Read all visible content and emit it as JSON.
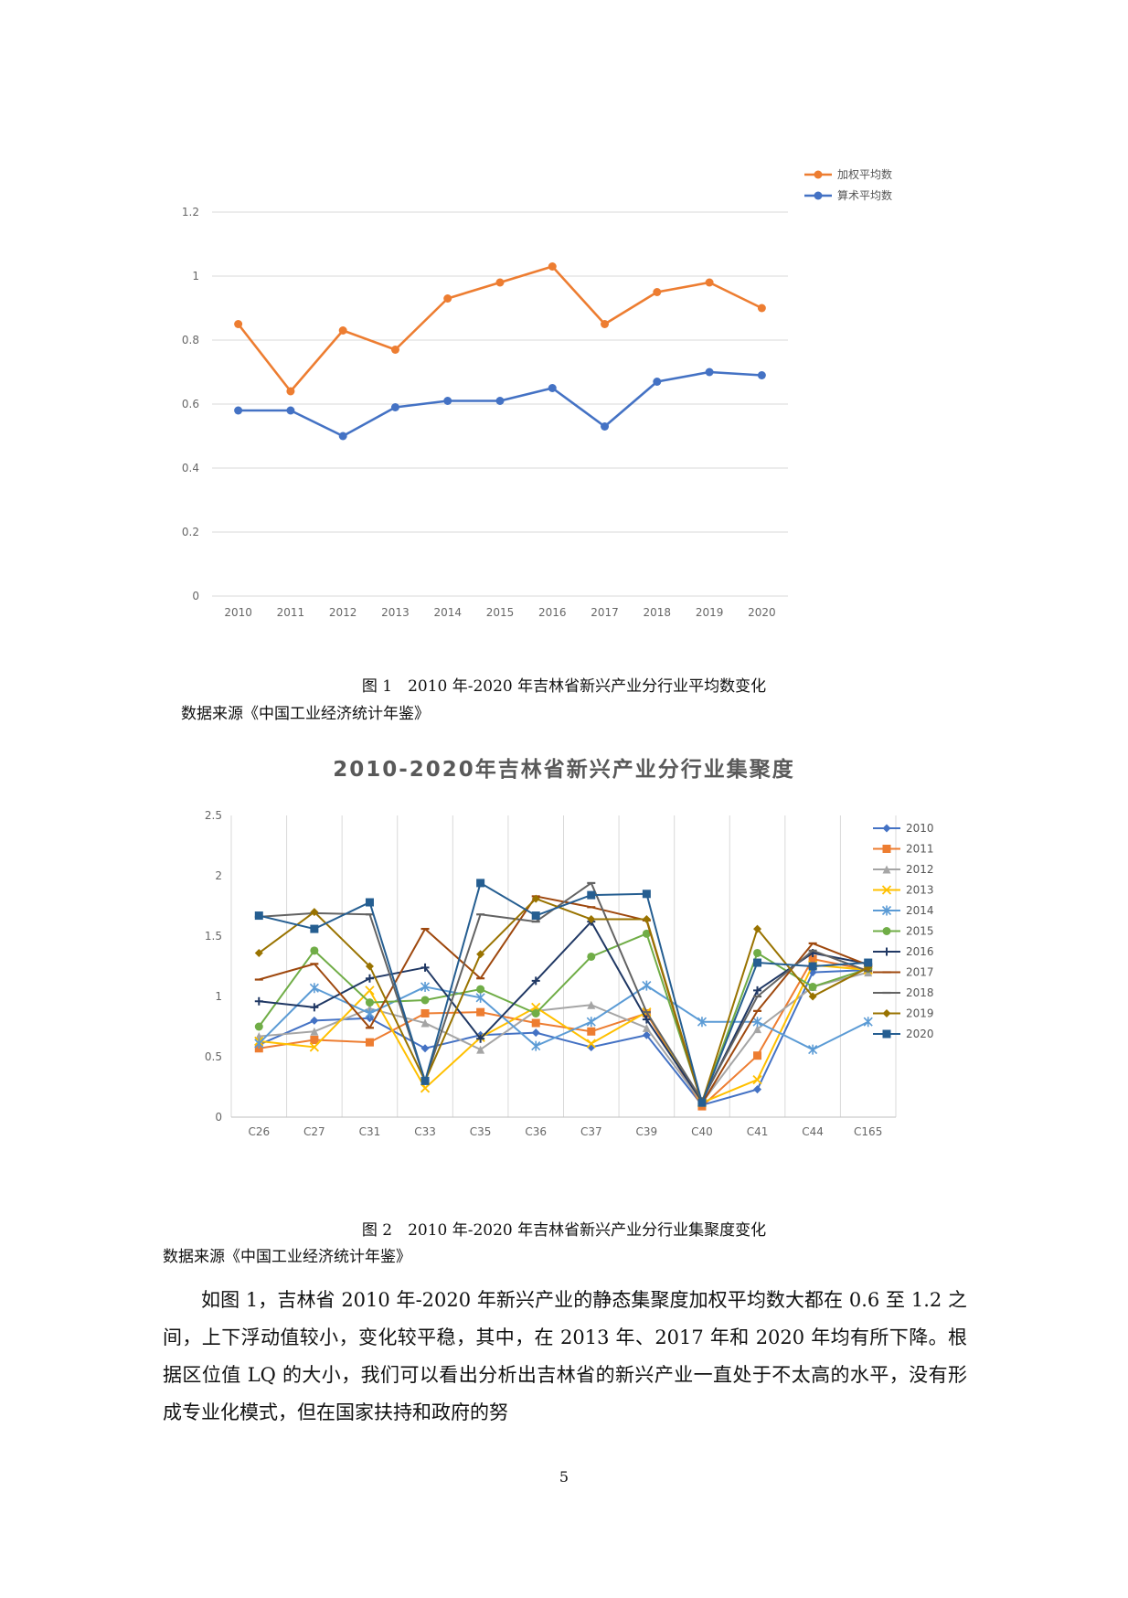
{
  "chart_data": [
    {
      "type": "line",
      "title": "",
      "categories": [
        "2010",
        "2011",
        "2012",
        "2013",
        "2014",
        "2015",
        "2016",
        "2017",
        "2018",
        "2019",
        "2020"
      ],
      "y_ticks": [
        "0",
        "0.2",
        "0.4",
        "0.6",
        "0.8",
        "1",
        "1.2"
      ],
      "ylim": [
        0,
        1.2
      ],
      "legend_position": "top-right",
      "series": [
        {
          "name": "加权平均数",
          "color": "#ED7D31",
          "marker": "circle",
          "values": [
            0.85,
            0.64,
            0.83,
            0.77,
            0.93,
            0.98,
            1.03,
            0.85,
            0.95,
            0.98,
            0.9
          ]
        },
        {
          "name": "算术平均数",
          "color": "#4472C4",
          "marker": "circle",
          "values": [
            0.58,
            0.58,
            0.5,
            0.59,
            0.61,
            0.61,
            0.65,
            0.53,
            0.67,
            0.7,
            0.69
          ]
        }
      ]
    },
    {
      "type": "line",
      "title": "2010-2020年吉林省新兴产业分行业集聚度",
      "categories": [
        "C26",
        "C27",
        "C31",
        "C33",
        "C35",
        "C36",
        "C37",
        "C39",
        "C40",
        "C41",
        "C44",
        "C165"
      ],
      "y_ticks": [
        "0",
        "0.5",
        "1",
        "1.5",
        "2",
        "2.5"
      ],
      "ylim": [
        0,
        2.5
      ],
      "legend_position": "right",
      "series": [
        {
          "name": "2010",
          "color": "#4472C4",
          "marker": "diamond",
          "values": [
            0.6,
            0.8,
            0.82,
            0.57,
            0.68,
            0.7,
            0.58,
            0.68,
            0.1,
            0.23,
            1.2,
            1.22
          ]
        },
        {
          "name": "2011",
          "color": "#ED7D31",
          "marker": "square",
          "values": [
            0.57,
            0.64,
            0.62,
            0.86,
            0.87,
            0.78,
            0.71,
            0.86,
            0.09,
            0.51,
            1.31,
            1.22
          ]
        },
        {
          "name": "2012",
          "color": "#A5A5A5",
          "marker": "triangle",
          "values": [
            0.67,
            0.71,
            0.9,
            0.78,
            0.56,
            0.88,
            0.93,
            0.74,
            0.12,
            0.73,
            1.08,
            1.2
          ]
        },
        {
          "name": "2013",
          "color": "#FFC000",
          "marker": "x",
          "values": [
            0.63,
            0.58,
            1.05,
            0.24,
            0.66,
            0.91,
            0.61,
            0.87,
            0.12,
            0.31,
            1.26,
            1.22
          ]
        },
        {
          "name": "2014",
          "color": "#5B9BD5",
          "marker": "star",
          "values": [
            0.61,
            1.07,
            0.86,
            1.08,
            0.99,
            0.59,
            0.79,
            1.09,
            0.79,
            0.79,
            0.56,
            0.79
          ]
        },
        {
          "name": "2015",
          "color": "#70AD47",
          "marker": "circle",
          "values": [
            0.75,
            1.38,
            0.95,
            0.97,
            1.06,
            0.86,
            1.33,
            1.52,
            0.12,
            1.36,
            1.08,
            1.23
          ]
        },
        {
          "name": "2016",
          "color": "#203864",
          "marker": "plus",
          "values": [
            0.96,
            0.91,
            1.15,
            1.24,
            0.65,
            1.13,
            1.62,
            0.81,
            0.13,
            1.05,
            1.36,
            1.27
          ]
        },
        {
          "name": "2017",
          "color": "#9E480E",
          "marker": "line",
          "values": [
            1.14,
            1.27,
            0.74,
            1.56,
            1.15,
            1.83,
            1.74,
            1.63,
            0.11,
            0.88,
            1.44,
            1.26
          ]
        },
        {
          "name": "2018",
          "color": "#636363",
          "marker": "line",
          "values": [
            1.66,
            1.69,
            1.68,
            0.3,
            1.68,
            1.62,
            1.94,
            0.87,
            0.14,
            1.0,
            1.38,
            1.21
          ]
        },
        {
          "name": "2019",
          "color": "#997300",
          "marker": "diamond",
          "values": [
            1.36,
            1.7,
            1.25,
            0.3,
            1.35,
            1.81,
            1.64,
            1.64,
            0.12,
            1.56,
            1.0,
            1.24
          ]
        },
        {
          "name": "2020",
          "color": "#255E91",
          "marker": "square",
          "values": [
            1.67,
            1.56,
            1.78,
            0.3,
            1.94,
            1.67,
            1.84,
            1.85,
            0.12,
            1.28,
            1.25,
            1.28
          ]
        }
      ]
    }
  ],
  "captions": {
    "fig1": "图 1　2010 年-2020 年吉林省新兴产业分行业平均数变化",
    "fig1_source": "数据来源《中国工业经济统计年鉴》",
    "fig2": "图 2　2010 年-2020 年吉林省新兴产业分行业集聚度变化",
    "fig2_source": "数据来源《中国工业经济统计年鉴》"
  },
  "body_text": "如图 1，吉林省 2010 年-2020 年新兴产业的静态集聚度加权平均数大都在 0.6 至 1.2 之间，上下浮动值较小，变化较平稳，其中，在 2013 年、2017 年和 2020 年均有所下降。根据区位值 LQ 的大小，我们可以看出分析出吉林省的新兴产业一直处于不太高的水平，没有形成专业化模式，但在国家扶持和政府的努",
  "page_number": "5"
}
